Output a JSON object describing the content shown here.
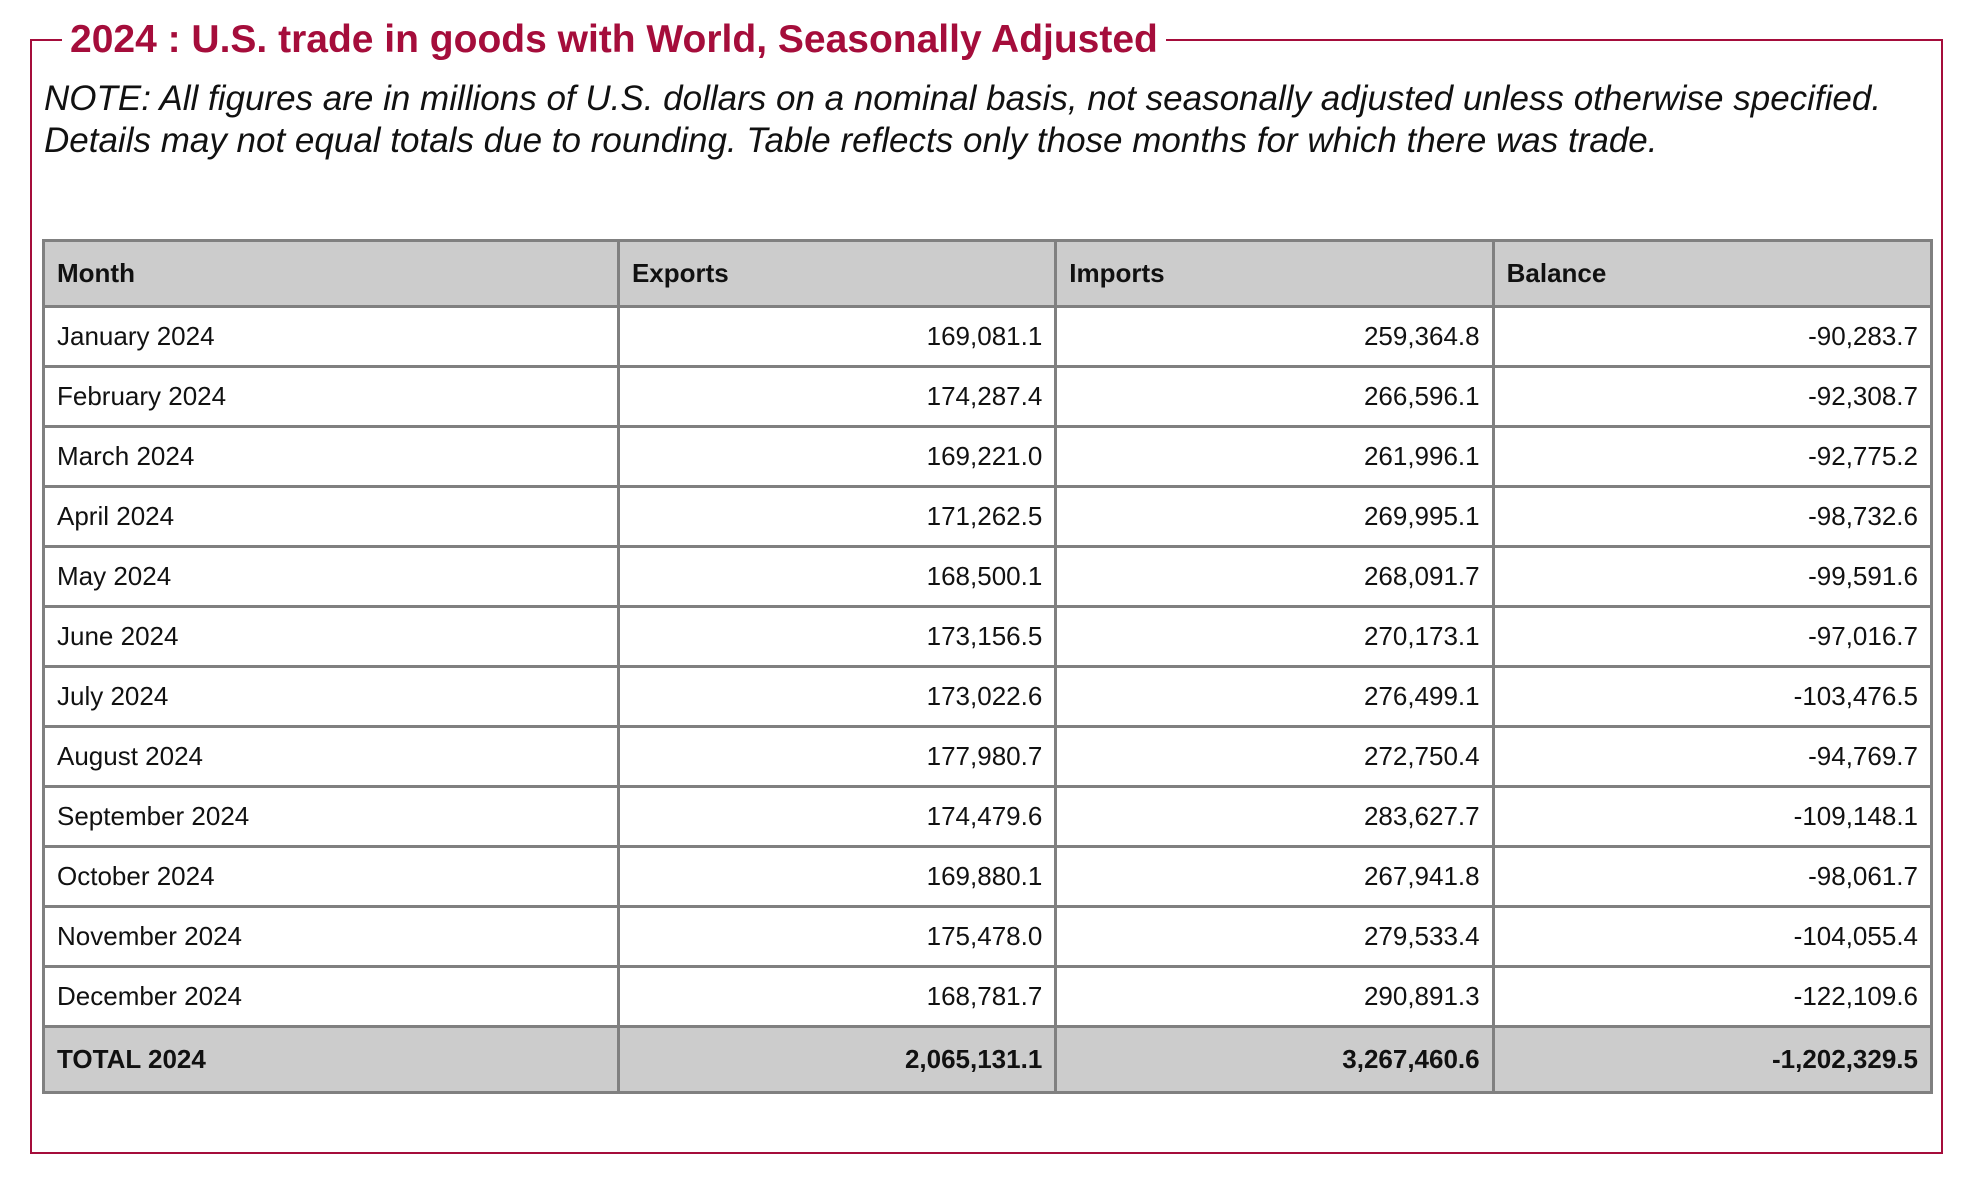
{
  "title": "2024 : U.S. trade in goods with World, Seasonally Adjusted",
  "note": {
    "line1": "NOTE: All figures are in millions of U.S. dollars on a nominal basis, not seasonally adjusted unless otherwise specified.",
    "line2": "Details may not equal totals due to rounding. Table reflects only those months for which there was trade."
  },
  "table": {
    "headers": [
      "Month",
      "Exports",
      "Imports",
      "Balance"
    ],
    "rows": [
      [
        "January 2024",
        "169,081.1",
        "259,364.8",
        "-90,283.7"
      ],
      [
        "February 2024",
        "174,287.4",
        "266,596.1",
        "-92,308.7"
      ],
      [
        "March 2024",
        "169,221.0",
        "261,996.1",
        "-92,775.2"
      ],
      [
        "April 2024",
        "171,262.5",
        "269,995.1",
        "-98,732.6"
      ],
      [
        "May 2024",
        "168,500.1",
        "268,091.7",
        "-99,591.6"
      ],
      [
        "June 2024",
        "173,156.5",
        "270,173.1",
        "-97,016.7"
      ],
      [
        "July 2024",
        "173,022.6",
        "276,499.1",
        "-103,476.5"
      ],
      [
        "August 2024",
        "177,980.7",
        "272,750.4",
        "-94,769.7"
      ],
      [
        "September 2024",
        "174,479.6",
        "283,627.7",
        "-109,148.1"
      ],
      [
        "October 2024",
        "169,880.1",
        "267,941.8",
        "-98,061.7"
      ],
      [
        "November 2024",
        "175,478.0",
        "279,533.4",
        "-104,055.4"
      ],
      [
        "December 2024",
        "168,781.7",
        "290,891.3",
        "-122,109.6"
      ]
    ],
    "total": [
      "TOTAL 2024",
      "2,065,131.1",
      "3,267,460.6",
      "-1,202,329.5"
    ]
  },
  "colors": {
    "accent": "#a50d3b",
    "header_bg": "#cccccc",
    "border": "#808080"
  }
}
